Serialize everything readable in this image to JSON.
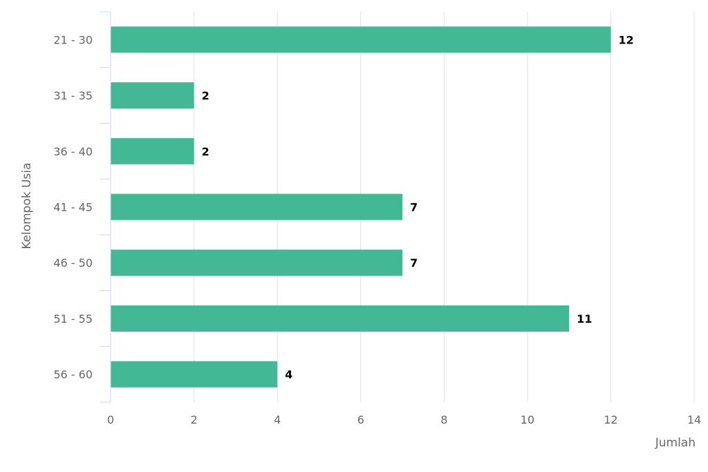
{
  "chart_data": {
    "type": "bar",
    "orientation": "horizontal",
    "categories": [
      "21 - 30",
      "31 - 35",
      "36 - 40",
      "41 - 45",
      "46 - 50",
      "51 - 55",
      "56 - 60"
    ],
    "values": [
      12,
      2,
      2,
      7,
      7,
      11,
      4
    ],
    "title": "",
    "xlabel": "Jumlah",
    "ylabel": "Kelompok Usia",
    "xlim": [
      0,
      14
    ],
    "xticks": [
      0,
      2,
      4,
      6,
      8,
      10,
      12,
      14
    ],
    "grid": true,
    "data_labels": true,
    "colors": {
      "bar": "#42b994",
      "grid": "#e0e0e0",
      "axis": "#ccd6eb",
      "tick_text": "#666666",
      "label_text": "#000000"
    }
  }
}
